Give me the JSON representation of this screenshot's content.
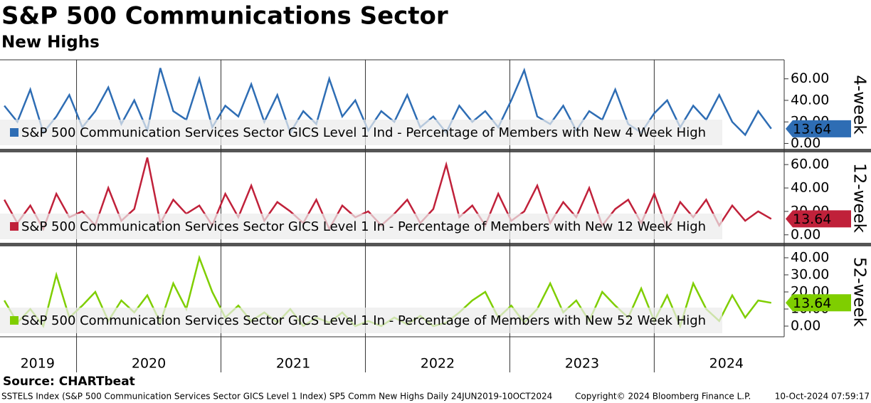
{
  "chart_data": {
    "type": "line",
    "title": "S&P 500 Communications Sector",
    "subtitle": "New Highs",
    "source": "Source: CHARTbeat",
    "footer_left": "SSTELS Index (S&P 500 Communication Services Sector GICS Level 1 Index) SP5 Comm New Highs  Daily 24JUN2019-10OCT2024",
    "footer_center": "Copyright© 2024 Bloomberg Finance L.P.",
    "footer_right": "10-Oct-2024 07:59:17",
    "xlim": [
      2019.47,
      2024.89
    ],
    "year_boundaries": [
      2020,
      2021,
      2022,
      2023,
      2024
    ],
    "xticks": [
      {
        "value": 2019.73,
        "label": "2019"
      },
      {
        "value": 2020.5,
        "label": "2020"
      },
      {
        "value": 2021.5,
        "label": "2021"
      },
      {
        "value": 2022.5,
        "label": "2022"
      },
      {
        "value": 2023.5,
        "label": "2023"
      },
      {
        "value": 2024.5,
        "label": "2024"
      }
    ],
    "x": [
      2019.5,
      2019.59,
      2019.68,
      2019.77,
      2019.86,
      2019.95,
      2020.04,
      2020.13,
      2020.22,
      2020.31,
      2020.4,
      2020.49,
      2020.58,
      2020.67,
      2020.76,
      2020.85,
      2020.94,
      2021.03,
      2021.12,
      2021.21,
      2021.3,
      2021.39,
      2021.48,
      2021.57,
      2021.66,
      2021.75,
      2021.84,
      2021.93,
      2022.02,
      2022.11,
      2022.2,
      2022.29,
      2022.38,
      2022.47,
      2022.56,
      2022.65,
      2022.74,
      2022.83,
      2022.92,
      2023.01,
      2023.1,
      2023.19,
      2023.28,
      2023.37,
      2023.46,
      2023.55,
      2023.64,
      2023.73,
      2023.82,
      2023.91,
      2024.0,
      2024.09,
      2024.18,
      2024.27,
      2024.36,
      2024.45,
      2024.54,
      2024.63,
      2024.72,
      2024.81
    ],
    "panels": [
      {
        "label": "4-week",
        "ylim": [
          -3,
          75
        ],
        "yticks": [
          {
            "value": 0,
            "label": "0.00"
          },
          {
            "value": 20,
            "label": "20.00"
          },
          {
            "value": 40,
            "label": "40.00"
          },
          {
            "value": 60,
            "label": "60.00"
          }
        ],
        "series": {
          "name": "S&P 500 Communication Services Sector GICS Level 1 Ind - Percentage of Members with New 4 Week High",
          "color": "#2e6db4",
          "text_color": "#ffffff",
          "values": [
            35,
            20,
            50,
            10,
            25,
            45,
            15,
            30,
            52,
            18,
            40,
            12,
            70,
            30,
            22,
            60,
            15,
            35,
            25,
            55,
            20,
            45,
            10,
            30,
            18,
            60,
            25,
            40,
            12,
            30,
            20,
            45,
            15,
            25,
            10,
            35,
            20,
            30,
            15,
            40,
            68,
            25,
            18,
            35,
            12,
            30,
            22,
            50,
            18,
            10,
            28,
            40,
            15,
            35,
            22,
            45,
            20,
            8,
            30,
            13.64
          ],
          "last_label": "13.64"
        }
      },
      {
        "label": "12-week",
        "ylim": [
          -5,
          68
        ],
        "yticks": [
          {
            "value": 0,
            "label": "0.00"
          },
          {
            "value": 20,
            "label": "20.00"
          },
          {
            "value": 40,
            "label": "40.00"
          },
          {
            "value": 60,
            "label": "60.00"
          }
        ],
        "series": {
          "name": "S&P 500 Communication Services Sector GICS Level 1 In - Percentage of Members with New 12 Week High",
          "color": "#c0213a",
          "text_color": "#ffffff",
          "values": [
            30,
            10,
            25,
            5,
            35,
            15,
            20,
            8,
            40,
            12,
            22,
            66,
            10,
            30,
            18,
            25,
            8,
            35,
            15,
            42,
            12,
            28,
            20,
            10,
            30,
            5,
            25,
            15,
            20,
            8,
            18,
            30,
            10,
            22,
            60,
            15,
            25,
            8,
            35,
            12,
            20,
            42,
            10,
            28,
            15,
            40,
            8,
            22,
            30,
            10,
            35,
            5,
            28,
            15,
            30,
            8,
            25,
            12,
            20,
            13.64
          ],
          "last_label": "13.64"
        }
      },
      {
        "label": "52-week",
        "ylim": [
          -5,
          45
        ],
        "yticks": [
          {
            "value": 0,
            "label": "0.00"
          },
          {
            "value": 10,
            "label": "10.00"
          },
          {
            "value": 20,
            "label": "20.00"
          },
          {
            "value": 30,
            "label": "30.00"
          },
          {
            "value": 40,
            "label": "40.00"
          }
        ],
        "series": {
          "name": "S&P 500 Communication Services Sector GICS Level 1 In - Percentage of Members with New 52 Week High",
          "color": "#7fce00",
          "text_color": "#000000",
          "values": [
            15,
            2,
            10,
            0,
            30,
            5,
            12,
            20,
            3,
            15,
            8,
            18,
            2,
            25,
            10,
            40,
            20,
            5,
            12,
            3,
            8,
            2,
            10,
            0,
            5,
            2,
            8,
            0,
            3,
            0,
            5,
            1,
            6,
            0,
            2,
            8,
            15,
            20,
            5,
            12,
            2,
            10,
            25,
            8,
            15,
            3,
            20,
            12,
            5,
            22,
            3,
            18,
            0,
            25,
            10,
            3,
            18,
            5,
            15,
            13.64
          ],
          "last_label": "13.64"
        }
      }
    ]
  }
}
